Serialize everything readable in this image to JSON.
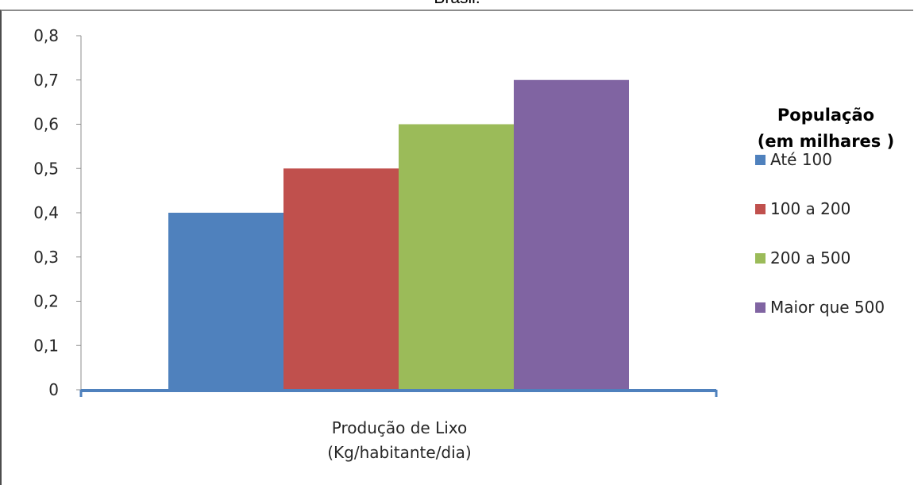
{
  "caption": "Brasil.",
  "chart_data": {
    "type": "bar",
    "categories": [
      "Produção de Lixo (Kg/habitante/dia)"
    ],
    "category_label_lines": [
      "Produção de Lixo",
      "(Kg/habitante/dia)"
    ],
    "series": [
      {
        "name": "Até 100",
        "values": [
          0.4
        ],
        "color": "#4F81BD"
      },
      {
        "name": "100 a 200",
        "values": [
          0.5
        ],
        "color": "#C0504D"
      },
      {
        "name": "200 a 500",
        "values": [
          0.6
        ],
        "color": "#9BBB59"
      },
      {
        "name": "Maior que 500",
        "values": [
          0.7
        ],
        "color": "#8064A2"
      }
    ],
    "yticks": [
      "0",
      "0,1",
      "0,2",
      "0,3",
      "0,4",
      "0,5",
      "0,6",
      "0,7",
      "0,8"
    ],
    "ylim": [
      0,
      0.8
    ],
    "legend": {
      "title_lines": [
        "População",
        "(em milhares )"
      ],
      "position": "right"
    },
    "grid": false,
    "axis_color": "#4F81BD"
  }
}
